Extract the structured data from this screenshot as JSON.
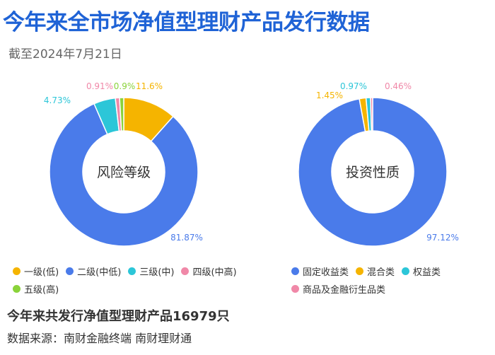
{
  "title": "今年来全市场净值型理财产品发行数据",
  "subtitle": "截至2024年7月21日",
  "footer": {
    "summary": "今年来共发行净值型理财产品16979只",
    "source": "数据来源：南财金融终端 南财理财通"
  },
  "chart_data": [
    {
      "type": "pie",
      "center_label": "风险等级",
      "categories": [
        "一级(低)",
        "二级(中低)",
        "三级(中)",
        "四级(中高)",
        "五级(高)"
      ],
      "values": [
        11.6,
        81.87,
        4.73,
        0.91,
        0.9
      ],
      "value_labels": [
        "11.6%",
        "81.87%",
        "4.73%",
        "0.91%",
        "0.9%"
      ],
      "colors": [
        "#f5b400",
        "#4a7bea",
        "#2cc6d8",
        "#f088a8",
        "#8ad33a"
      ],
      "legend_position": "bottom"
    },
    {
      "type": "pie",
      "center_label": "投资性质",
      "categories": [
        "固定收益类",
        "混合类",
        "权益类",
        "商品及金融衍生品类"
      ],
      "values": [
        97.12,
        1.45,
        0.97,
        0.46
      ],
      "value_labels": [
        "97.12%",
        "1.45%",
        "0.97%",
        "0.46%"
      ],
      "colors": [
        "#4a7bea",
        "#f5b400",
        "#2cc6d8",
        "#f088a8"
      ],
      "legend_position": "bottom"
    }
  ]
}
